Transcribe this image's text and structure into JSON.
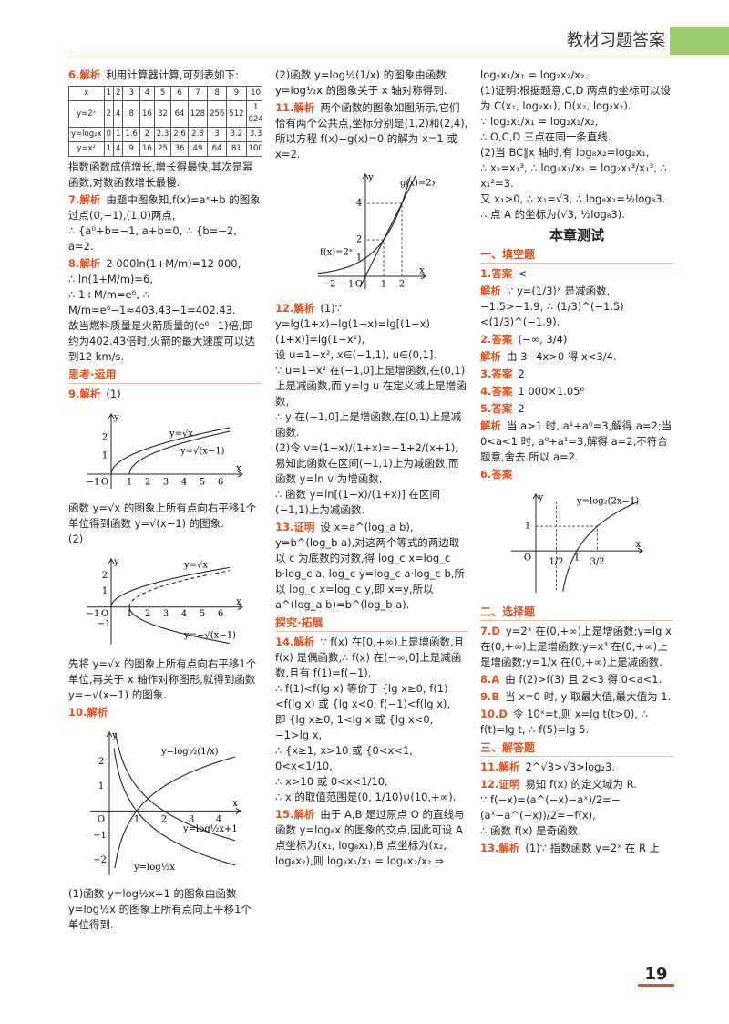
{
  "header": {
    "title": "教材习题答案"
  },
  "page_number": "19",
  "col1": [
    {
      "label": "6.解析",
      "lines": [
        "利用计算器计算,可列表如下:"
      ],
      "table": [
        [
          "x",
          "1",
          "2",
          "3",
          "4",
          "5",
          "6",
          "7",
          "8",
          "9",
          "10"
        ],
        [
          "y=2ˣ",
          "2",
          "4",
          "8",
          "16",
          "32",
          "64",
          "128",
          "256",
          "512",
          "1 024"
        ],
        [
          "y=log₂x",
          "0",
          "1",
          "1.6",
          "2",
          "2.3",
          "2.6",
          "2.8",
          "3",
          "3.2",
          "3.3"
        ],
        [
          "y=x²",
          "1",
          "4",
          "9",
          "16",
          "25",
          "36",
          "49",
          "64",
          "81",
          "100"
        ]
      ]
    },
    {
      "lines": [
        "指数函数成倍增长,增长得最快,其次是幂函数,对数函数增长最慢."
      ]
    },
    {
      "label": "7.解析",
      "lines": [
        "由题中图象知,f(x)=aˣ+b 的图象过点(0,−1),(1,0)两点,",
        "∴ {a⁰+b=−1, a+b=0, ∴ {b=−2, a=2."
      ]
    },
    {
      "label": "8.解析",
      "lines": [
        "2 000ln(1+M/m)=12 000,",
        "∴ ln(1+M/m)=6,",
        "∴ 1+M/m=e⁶, ∴ M/m=e⁶−1≈403.43−1=402.43.",
        "故当燃料质量是火箭质量的(e⁶−1)倍,即约为402.43倍时,火箭的最大速度可以达到12 km/s."
      ]
    },
    {
      "section": "思考·运用"
    },
    {
      "label": "9.解析",
      "lines": [
        "(1)"
      ],
      "figure": [
        "y",
        "2",
        "1",
        "−1",
        "O",
        "1",
        "2",
        "3",
        "4",
        "5",
        "6",
        "x",
        "y=√x",
        "y=√(x−1)"
      ]
    },
    {
      "lines": [
        "函数 y=√x 的图象上所有点向右平移1个单位得到函数 y=√(x−1) 的图象.",
        "(2)"
      ],
      "figure": [
        "y",
        "2",
        "1",
        "−1",
        "O",
        "1",
        "2",
        "3",
        "4",
        "5",
        "6",
        "x",
        "−1",
        "y=√x",
        "y=−√(x−1)"
      ]
    },
    {
      "lines": [
        "先将 y=√x 的图象上所有点向右平移1个单位,再关于 x 轴作对称图形,就得到函数 y=−√(x−1) 的图象."
      ]
    },
    {
      "label": "10.解析",
      "lines": [],
      "figure": [
        "y",
        "2",
        "1",
        "O",
        "1",
        "2",
        "3",
        "4",
        "x",
        "−1",
        "−2",
        "y=log½(1/x)",
        "y=log½x+1",
        "y=log½x"
      ]
    },
    {
      "lines": [
        "(1)函数 y=log½x+1 的图象由函数 y=log½x 的图象上所有点向上平移1个单位得到."
      ]
    }
  ],
  "col2": [
    {
      "lines": [
        "(2)函数 y=log½(1/x) 的图象由函数 y=log½x 的图象关于 x 轴对称得到."
      ]
    },
    {
      "label": "11.解析",
      "lines": [
        "两个函数的图象如图所示,它们恰有两个公共点,坐标分别是(1,2)和(2,4),所以方程 f(x)−g(x)=0 的解为 x=1 或 x=2."
      ],
      "figure": [
        "y",
        "g(x)=2x",
        "4",
        "2",
        "1",
        "f(x)=2ˣ",
        "−2",
        "−1",
        "O",
        "1",
        "2",
        "x"
      ]
    },
    {
      "label": "12.解析",
      "lines": [
        "(1)∵ y=lg(1+x)+lg(1−x)=lg[(1−x)(1+x)]=lg(1−x²),",
        "设 u=1−x², x∈(−1,1), u∈(0,1].",
        "∵ u=1−x² 在(−1,0]上是增函数,在(0,1)上是减函数,而 y=lg u 在定义域上是增函数,",
        "∴ y 在(−1,0]上是增函数,在(0,1)上是减函数.",
        "(2)令 v=(1−x)/(1+x)=−1+2/(x+1),易知此函数在区间(−1,1)上为减函数,而函数 y=ln v 为增函数,",
        "∴ 函数 y=ln[(1−x)/(1+x)] 在区间(−1,1)上为减函数."
      ]
    },
    {
      "label": "13.证明",
      "lines": [
        "设 x=a^(log_a b), y=b^(log_b a),对这两个等式的两边取以 c 为底数的对数,得 log_c x=log_c b·log_c a, log_c y=log_c a·log_c b,所以 log_c x=log_c y,即 x=y,所以 a^(log_a b)=b^(log_b a)."
      ]
    },
    {
      "section": "探究·拓展"
    },
    {
      "label": "14.解析",
      "lines": [
        "∵ f(x) 在[0,+∞)上是增函数,且 f(x) 是偶函数,∴ f(x) 在(−∞,0]上是减函数,且有 f(1)=f(−1),",
        "∴ f(1)<f(lg x) 等价于 {lg x≥0, f(1)<f(lg x) 或 {lg x<0, f(−1)<f(lg x),",
        "即 {lg x≥0, 1<lg x 或 {lg x<0, −1>lg x,",
        "∴ {x≥1, x>10 或 {0<x<1, 0<x<1/10,",
        "∴ x>10 或 0<x<1/10,",
        "∴ x 的取值范围是(0, 1/10)∪(10,+∞)."
      ]
    },
    {
      "label": "15.解析",
      "lines": [
        "由于 A,B 是过原点 O 的直线与函数 y=log₈x 的图象的交点,因此可设 A 点坐标为(x₁, log₈x₁),B 点坐标为(x₂, log₈x₂),则 log₈x₁/x₁ = log₈x₂/x₂ ⇒"
      ]
    }
  ],
  "col3": [
    {
      "lines": [
        "log₂x₁/x₁ = log₂x₂/x₂.",
        "(1)证明:根据题意,C,D 两点的坐标可以设为 C(x₁, log₂x₁), D(x₂, log₂x₂).",
        "∵ log₂x₁/x₁ = log₂x₂/x₂,",
        "∴ O,C,D 三点在同一条直线.",
        "(2)当 BC∥x 轴时,有 log₈x₂=log₂x₁,",
        "∴ x₂=x₁³, ∴ log₂x₁/x₁ = log₂x₁³/x₁³, ∴ x₁²=3.",
        "又 x₁>0, ∴ x₁=√3, ∴ log₈x₁=½log₈3.",
        "∴ 点 A 的坐标为(√3, ½log₈3)."
      ]
    },
    {
      "title": "本章测试"
    },
    {
      "section": "一、填空题"
    },
    {
      "label": "1.答案",
      "lines": [
        "<"
      ]
    },
    {
      "label": "解析",
      "lines": [
        "∵ y=(1/3)ˣ 是减函数, −1.5>−1.9, ∴ (1/3)^(−1.5)<(1/3)^(−1.9)."
      ]
    },
    {
      "label": "2.答案",
      "lines": [
        "(−∞, 3/4)"
      ]
    },
    {
      "label": "解析",
      "lines": [
        "由 3−4x>0 得 x<3/4."
      ]
    },
    {
      "label": "3.答案",
      "lines": [
        "2"
      ]
    },
    {
      "label": "4.答案",
      "lines": [
        "1 000×1.05⁶"
      ]
    },
    {
      "label": "5.答案",
      "lines": [
        "2"
      ]
    },
    {
      "label": "解析",
      "lines": [
        "当 a>1 时, a¹+a⁰=3,解得 a=2;当 0<a<1 时, a⁰+a¹=3,解得 a=2,不符合题意,舍去.所以 a=2."
      ]
    },
    {
      "label": "6.答案",
      "lines": [],
      "figure": [
        "y",
        "y=log₂(2x−1)",
        "1",
        "O",
        "1/2",
        "1",
        "3/2",
        "x"
      ]
    },
    {
      "section": "二、选择题"
    },
    {
      "label": "7.D",
      "lines": [
        "y=2ˣ 在(0,+∞)上是增函数;y=lg x 在(0,+∞)上是增函数;y=x³ 在(0,+∞)上是增函数;y=1/x 在(0,+∞)上是减函数."
      ]
    },
    {
      "label": "8.A",
      "lines": [
        "由 f(2)>f(3) 且 2<3 得 0<a<1."
      ]
    },
    {
      "label": "9.B",
      "lines": [
        "当 x=0 时, y 取最大值,最大值为 1."
      ]
    },
    {
      "label": "10.D",
      "lines": [
        "令 10ˣ=t,则 x=lg t(t>0), ∴ f(t)=lg t, ∴ f(5)=lg 5."
      ]
    },
    {
      "section": "三、解答题"
    },
    {
      "label": "11.解析",
      "lines": [
        "2^√3>√3>log₂3."
      ]
    },
    {
      "label": "12.证明",
      "lines": [
        "易知 f(x) 的定义域为 R.",
        "∵ f(−x)=(a^(−x)−aˣ)/2=−(aˣ−a^(−x))/2=−f(x),",
        "∴ 函数 f(x) 是奇函数."
      ]
    },
    {
      "label": "13.解析",
      "lines": [
        "(1)∵ 指数函数 y=2ˣ 在 R 上"
      ]
    }
  ]
}
